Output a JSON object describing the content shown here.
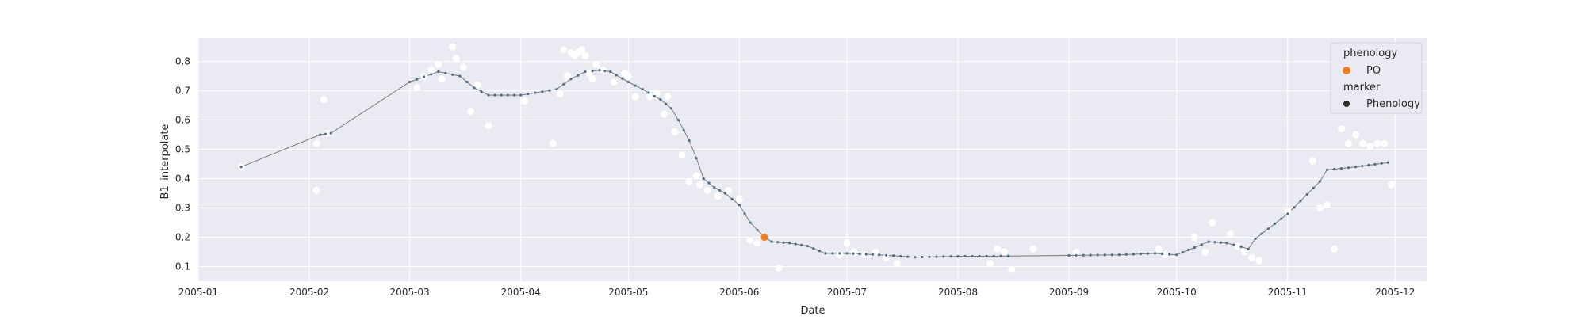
{
  "chart_data": {
    "type": "line",
    "xlabel": "Date",
    "ylabel": "B1_interpolate",
    "xlim": [
      "2005-01-01",
      "2005-12-10"
    ],
    "ylim": [
      0.05,
      0.88
    ],
    "x_ticks": [
      "2005-01",
      "2005-02",
      "2005-03",
      "2005-04",
      "2005-05",
      "2005-06",
      "2005-07",
      "2005-08",
      "2005-09",
      "2005-10",
      "2005-11",
      "2005-12"
    ],
    "y_ticks": [
      0.1,
      0.2,
      0.3,
      0.4,
      0.5,
      0.6,
      0.7,
      0.8
    ],
    "grid": true,
    "legend_position": "top-right",
    "legend": {
      "phenology_title": "phenology",
      "phenology_label": "PO",
      "marker_title": "marker",
      "marker_label": "Phenology"
    },
    "colors": {
      "background": "#eaeaf2",
      "grid": "#ffffff",
      "line": "#7a7a7a",
      "series_marker": "#4d6f86",
      "raw_points": "#ffffff",
      "po_point": "#f07f22",
      "legend_marker": "#2b2b2b"
    },
    "interpolated_series": {
      "x": [
        "2005-01-13",
        "2005-02-04",
        "2005-02-07",
        "2005-03-01",
        "2005-03-09",
        "2005-03-15",
        "2005-03-19",
        "2005-03-23",
        "2005-04-01",
        "2005-04-11",
        "2005-04-15",
        "2005-04-19",
        "2005-04-23",
        "2005-04-26",
        "2005-05-01",
        "2005-05-05",
        "2005-05-10",
        "2005-05-13",
        "2005-05-15",
        "2005-05-18",
        "2005-05-20",
        "2005-05-22",
        "2005-05-25",
        "2005-05-28",
        "2005-06-01",
        "2005-06-04",
        "2005-06-08",
        "2005-06-10",
        "2005-06-15",
        "2005-06-20",
        "2005-06-25",
        "2005-07-01",
        "2005-07-10",
        "2005-07-20",
        "2005-08-01",
        "2005-08-15",
        "2005-09-01",
        "2005-09-15",
        "2005-09-25",
        "2005-10-01",
        "2005-10-06",
        "2005-10-10",
        "2005-10-15",
        "2005-10-19",
        "2005-10-21",
        "2005-10-23",
        "2005-11-01",
        "2005-11-10",
        "2005-11-12",
        "2005-11-20",
        "2005-11-29"
      ],
      "y": [
        0.44,
        0.55,
        0.555,
        0.73,
        0.765,
        0.75,
        0.71,
        0.685,
        0.685,
        0.705,
        0.74,
        0.765,
        0.77,
        0.765,
        0.73,
        0.705,
        0.67,
        0.64,
        0.6,
        0.53,
        0.47,
        0.4,
        0.37,
        0.35,
        0.31,
        0.25,
        0.2,
        0.185,
        0.18,
        0.17,
        0.145,
        0.145,
        0.14,
        0.132,
        0.135,
        0.136,
        0.138,
        0.14,
        0.145,
        0.14,
        0.165,
        0.185,
        0.18,
        0.168,
        0.16,
        0.195,
        0.28,
        0.39,
        0.43,
        0.44,
        0.455
      ]
    },
    "raw_points": {
      "x": [
        "2005-01-13",
        "2005-02-03",
        "2005-02-03",
        "2005-02-05",
        "2005-02-06",
        "2005-03-03",
        "2005-03-05",
        "2005-03-07",
        "2005-03-09",
        "2005-03-10",
        "2005-03-13",
        "2005-03-14",
        "2005-03-16",
        "2005-03-18",
        "2005-03-20",
        "2005-03-23",
        "2005-04-02",
        "2005-04-10",
        "2005-04-12",
        "2005-04-13",
        "2005-04-14",
        "2005-04-15",
        "2005-04-16",
        "2005-04-17",
        "2005-04-18",
        "2005-04-19",
        "2005-04-20",
        "2005-04-21",
        "2005-04-22",
        "2005-04-24",
        "2005-04-27",
        "2005-04-30",
        "2005-05-01",
        "2005-05-03",
        "2005-05-07",
        "2005-05-09",
        "2005-05-11",
        "2005-05-12",
        "2005-05-14",
        "2005-05-16",
        "2005-05-18",
        "2005-05-20",
        "2005-05-21",
        "2005-05-23",
        "2005-05-26",
        "2005-05-29",
        "2005-06-01",
        "2005-06-04",
        "2005-06-06",
        "2005-06-08",
        "2005-06-12",
        "2005-06-29",
        "2005-07-01",
        "2005-07-03",
        "2005-07-06",
        "2005-07-09",
        "2005-07-12",
        "2005-07-15",
        "2005-08-10",
        "2005-08-12",
        "2005-08-14",
        "2005-08-16",
        "2005-08-22",
        "2005-09-03",
        "2005-09-26",
        "2005-09-28",
        "2005-10-06",
        "2005-10-09",
        "2005-10-11",
        "2005-10-16",
        "2005-10-18",
        "2005-10-20",
        "2005-10-22",
        "2005-10-24",
        "2005-11-01",
        "2005-11-08",
        "2005-11-10",
        "2005-11-12",
        "2005-11-14",
        "2005-11-16",
        "2005-11-18",
        "2005-11-20",
        "2005-11-22",
        "2005-11-24",
        "2005-11-26",
        "2005-11-28",
        "2005-11-30"
      ],
      "y": [
        0.44,
        0.36,
        0.52,
        0.67,
        0.555,
        0.71,
        0.75,
        0.77,
        0.79,
        0.74,
        0.85,
        0.81,
        0.78,
        0.63,
        0.72,
        0.58,
        0.665,
        0.52,
        0.69,
        0.84,
        0.75,
        0.83,
        0.82,
        0.83,
        0.84,
        0.82,
        0.76,
        0.74,
        0.79,
        0.77,
        0.73,
        0.76,
        0.75,
        0.68,
        0.68,
        0.69,
        0.62,
        0.68,
        0.56,
        0.48,
        0.39,
        0.41,
        0.38,
        0.36,
        0.34,
        0.36,
        0.33,
        0.19,
        0.18,
        0.2,
        0.095,
        0.14,
        0.18,
        0.15,
        0.14,
        0.15,
        0.13,
        0.11,
        0.11,
        0.16,
        0.15,
        0.09,
        0.16,
        0.15,
        0.16,
        0.14,
        0.2,
        0.15,
        0.25,
        0.21,
        0.17,
        0.15,
        0.13,
        0.12,
        0.29,
        0.46,
        0.3,
        0.31,
        0.16,
        0.57,
        0.52,
        0.55,
        0.52,
        0.51,
        0.52,
        0.52,
        0.38
      ]
    },
    "phenology_points": [
      {
        "label": "PO",
        "x": "2005-06-08",
        "y": 0.2
      }
    ]
  }
}
